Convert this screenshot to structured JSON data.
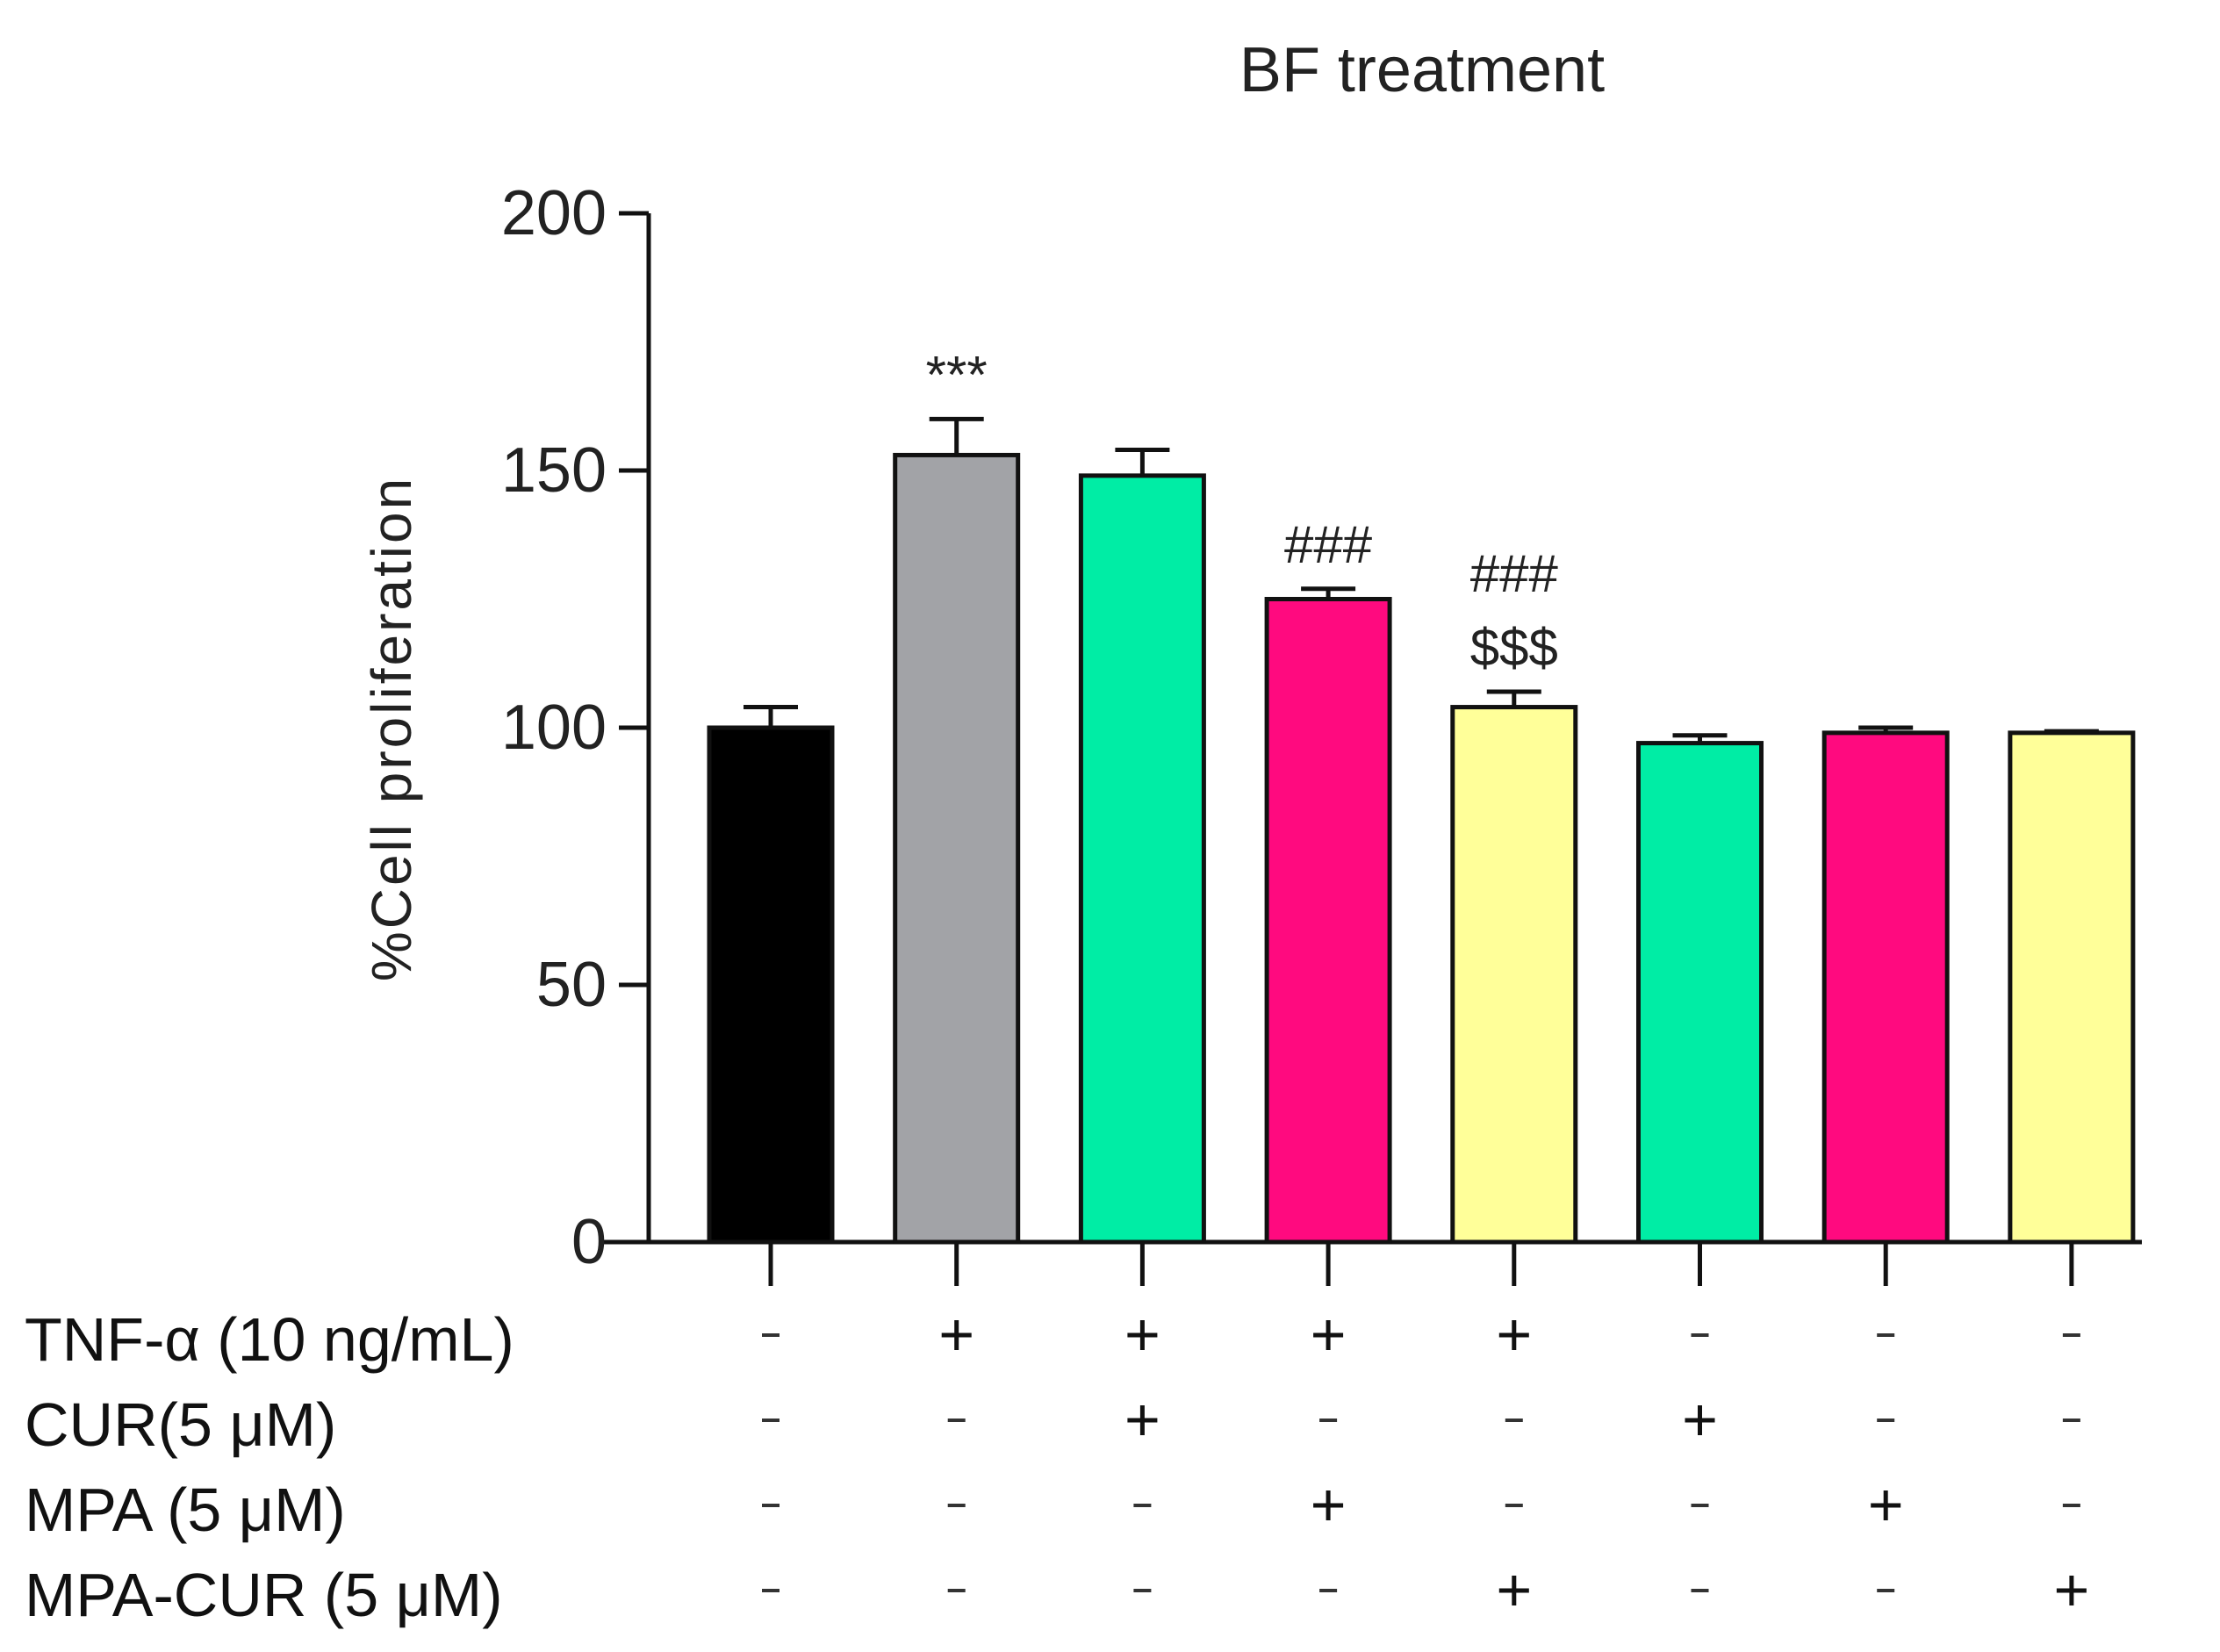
{
  "chart_data": {
    "type": "bar",
    "title": "BF treatment",
    "xlabel": "",
    "ylabel": "%Cell proliferation",
    "ylim": [
      0,
      200
    ],
    "yticks": [
      0,
      50,
      100,
      150,
      200
    ],
    "grid": false,
    "legend": "none",
    "bars": [
      {
        "value": 100,
        "error": 4,
        "color": "#000000",
        "annotation": ""
      },
      {
        "value": 153,
        "error": 7,
        "color": "#a2a3a7",
        "annotation": "***"
      },
      {
        "value": 149,
        "error": 5,
        "color": "#00eda5",
        "annotation": ""
      },
      {
        "value": 125,
        "error": 2,
        "color": "#ff0a7f",
        "annotation": "###"
      },
      {
        "value": 104,
        "error": 3,
        "color": "#ffff99",
        "annotation": "###\n$$$"
      },
      {
        "value": 97,
        "error": 1.5,
        "color": "#00eda5",
        "annotation": ""
      },
      {
        "value": 99,
        "error": 1,
        "color": "#ff0a7f",
        "annotation": ""
      },
      {
        "value": 99,
        "error": 0.3,
        "color": "#ffff99",
        "annotation": ""
      }
    ],
    "treatment_rows": [
      {
        "label": "TNF-α (10 ng/mL)",
        "signs": [
          "-",
          "+",
          "+",
          "+",
          "+",
          "-",
          "-",
          "-"
        ]
      },
      {
        "label": "CUR(5 μM)",
        "signs": [
          "-",
          "-",
          "+",
          "-",
          "-",
          "+",
          "-",
          "-"
        ]
      },
      {
        "label": "MPA (5 μM)",
        "signs": [
          "-",
          "-",
          "-",
          "+",
          "-",
          "-",
          "+",
          "-"
        ]
      },
      {
        "label": "MPA-CUR (5 μM)",
        "signs": [
          "-",
          "-",
          "-",
          "-",
          "+",
          "-",
          "-",
          "+"
        ]
      }
    ]
  }
}
